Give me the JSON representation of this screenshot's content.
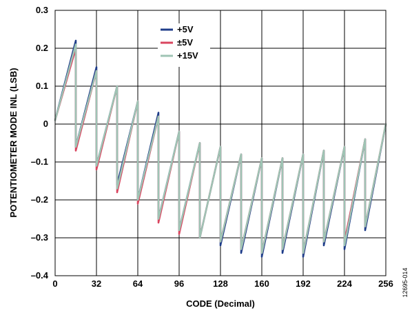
{
  "chart_data": {
    "type": "line",
    "title": "",
    "xlabel": "CODE (Decimal)",
    "ylabel": "POTENTIOMETER MODE INL (LSB)",
    "xlim": [
      0,
      256
    ],
    "ylim": [
      -0.4,
      0.3
    ],
    "xticks": [
      0,
      32,
      64,
      96,
      128,
      160,
      192,
      224,
      256
    ],
    "yticks": [
      0.3,
      0.2,
      0.1,
      0,
      -0.1,
      -0.2,
      -0.3,
      -0.4
    ],
    "xtick_labels": [
      "0",
      "32",
      "64",
      "96",
      "128",
      "160",
      "192",
      "224",
      "256"
    ],
    "ytick_labels": [
      "0.3",
      "0.2",
      "0.1",
      "0",
      "–0.1",
      "–0.2",
      "–0.3",
      "–0.4"
    ],
    "grid": true,
    "legend_position": "top-center",
    "x": [
      0,
      16,
      16,
      32,
      32,
      48,
      48,
      64,
      64,
      80,
      80,
      96,
      96,
      112,
      112,
      128,
      128,
      144,
      144,
      160,
      160,
      176,
      176,
      192,
      192,
      208,
      208,
      224,
      224,
      240,
      240,
      256
    ],
    "series": [
      {
        "name": "+5V",
        "color": "#1f3d8a",
        "values": [
          0.01,
          0.22,
          -0.06,
          0.15,
          -0.11,
          0.1,
          -0.16,
          0.06,
          -0.2,
          0.03,
          -0.25,
          -0.02,
          -0.28,
          -0.05,
          -0.3,
          -0.06,
          -0.32,
          -0.08,
          -0.34,
          -0.09,
          -0.35,
          -0.09,
          -0.34,
          -0.08,
          -0.35,
          -0.07,
          -0.32,
          -0.06,
          -0.33,
          -0.04,
          -0.28,
          0
        ]
      },
      {
        "name": "±5V",
        "color": "#d9455f",
        "values": [
          0.01,
          0.2,
          -0.07,
          0.14,
          -0.12,
          0.1,
          -0.18,
          0.06,
          -0.21,
          0.02,
          -0.26,
          -0.02,
          -0.29,
          -0.05,
          -0.3,
          -0.06,
          -0.31,
          -0.08,
          -0.33,
          -0.09,
          -0.34,
          -0.09,
          -0.33,
          -0.08,
          -0.34,
          -0.07,
          -0.31,
          -0.06,
          -0.31,
          -0.04,
          -0.27,
          0
        ]
      },
      {
        "name": "+15V",
        "color": "#9fc4b4",
        "values": [
          0.01,
          0.21,
          -0.06,
          0.14,
          -0.11,
          0.1,
          -0.17,
          0.06,
          -0.2,
          0.02,
          -0.25,
          -0.02,
          -0.28,
          -0.05,
          -0.3,
          -0.06,
          -0.31,
          -0.08,
          -0.33,
          -0.09,
          -0.34,
          -0.09,
          -0.33,
          -0.08,
          -0.34,
          -0.07,
          -0.31,
          -0.06,
          -0.32,
          -0.04,
          -0.27,
          0
        ]
      }
    ]
  },
  "figure_id": "12695-014"
}
